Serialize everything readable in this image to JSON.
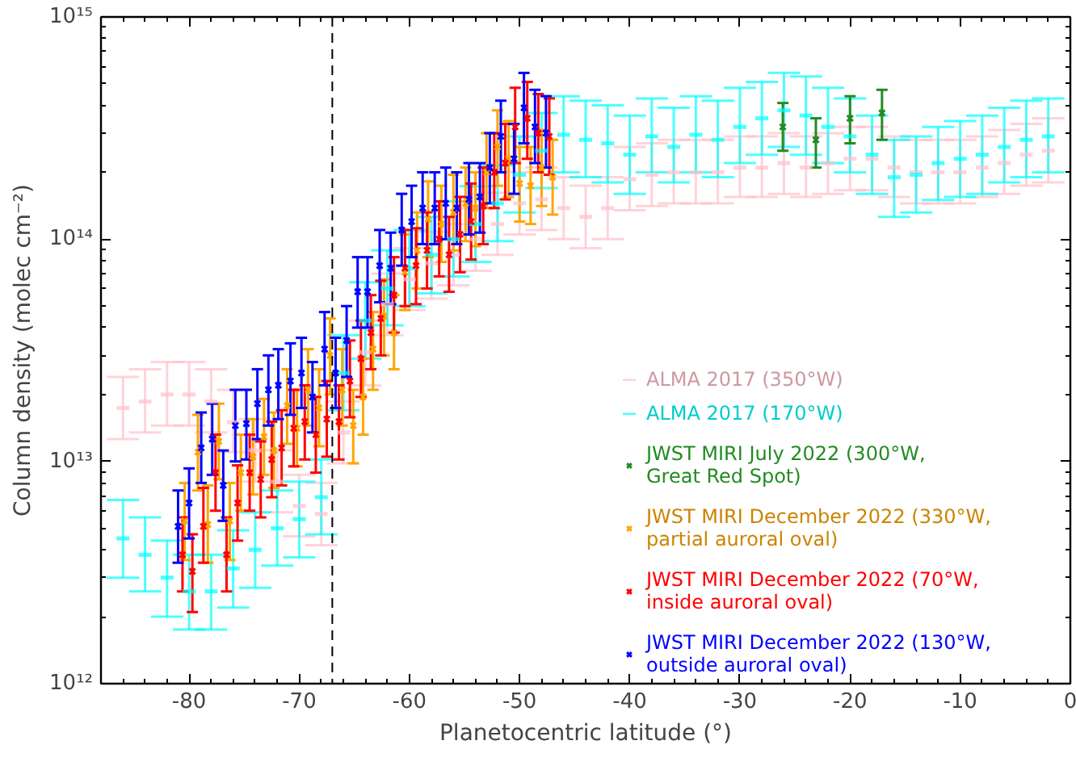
{
  "chart_data": {
    "type": "scatter",
    "xlabel": "Planetocentric latitude (°)",
    "ylabel": "Column density (molec cm⁻²)",
    "log": "y",
    "grid": false,
    "legend": "bottom right",
    "xlim": [
      -88,
      0
    ],
    "xticks": [
      -80,
      -70,
      -60,
      -50,
      -40,
      -30,
      -20,
      -10,
      0
    ],
    "ylim": [
      1000000000000.0,
      1000000000000000.0
    ],
    "yticks": [
      {
        "value": 1000000000000.0,
        "label": "10¹²"
      },
      {
        "value": 10000000000000.0,
        "label": "10¹³"
      },
      {
        "value": 100000000000000.0,
        "label": "10¹⁴"
      },
      {
        "value": 1000000000000000.0,
        "label": "10¹⁵"
      }
    ],
    "ref_lines": [
      {
        "axis": "x",
        "value": -67,
        "label": null,
        "color": "#000000",
        "line_style": "dashed"
      }
    ],
    "series": [
      {
        "name": "ALMA 2017 (350°W)",
        "color": "#ffc0cb",
        "x": [
          -86,
          -84,
          -82,
          -80,
          -78,
          -76,
          -74,
          -72,
          -70,
          -68,
          -66,
          -64,
          -62,
          -60,
          -58,
          -56,
          -54,
          -52,
          -50,
          -48,
          -46,
          -44,
          -42,
          -40,
          -38,
          -36,
          -34,
          -32,
          -30,
          -28,
          -26,
          -24,
          -22,
          -20,
          -18,
          -16,
          -14,
          -12,
          -10,
          -8,
          -6,
          -4,
          -2
        ],
        "values": [
          17400000000000.0,
          18600000000000.0,
          20000000000000.0,
          20000000000000.0,
          18600000000000.0,
          15000000000000.0,
          11200000000000.0,
          8100000000000.0,
          6300000000000.0,
          5800000000000.0,
          13500000000000.0,
          31000000000000.0,
          51000000000000.0,
          66000000000000.0,
          78000000000000.0,
          85000000000000.0,
          100000000000000.0,
          117000000000000.0,
          145000000000000.0,
          151000000000000.0,
          138000000000000.0,
          126000000000000.0,
          138000000000000.0,
          186000000000000.0,
          195000000000000.0,
          200000000000000.0,
          200000000000000.0,
          200000000000000.0,
          210000000000000.0,
          210000000000000.0,
          220000000000000.0,
          210000000000000.0,
          220000000000000.0,
          230000000000000.0,
          230000000000000.0,
          210000000000000.0,
          200000000000000.0,
          200000000000000.0,
          200000000000000.0,
          210000000000000.0,
          220000000000000.0,
          240000000000000.0,
          250000000000000.0
        ],
        "errors": [
          [
            12600000000000.0,
            24000000000000.0
          ],
          [
            13500000000000.0,
            26000000000000.0
          ],
          [
            14500000000000.0,
            28000000000000.0
          ],
          [
            14500000000000.0,
            28000000000000.0
          ],
          [
            13500000000000.0,
            26000000000000.0
          ],
          [
            11000000000000.0,
            21000000000000.0
          ],
          [
            8100000000000.0,
            15500000000000.0
          ],
          [
            5900000000000.0,
            11200000000000.0
          ],
          [
            4600000000000.0,
            8700000000000.0
          ],
          [
            4200000000000.0,
            8000000000000.0
          ],
          [
            9800000000000.0,
            18600000000000.0
          ],
          [
            22000000000000.0,
            43000000000000.0
          ],
          [
            37000000000000.0,
            70000000000000.0
          ],
          [
            48000000000000.0,
            91000000000000.0
          ],
          [
            54000000000000.0,
            108000000000000.0
          ],
          [
            62000000000000.0,
            117000000000000.0
          ],
          [
            72000000000000.0,
            138000000000000.0
          ],
          [
            85000000000000.0,
            162000000000000.0
          ],
          [
            105000000000000.0,
            200000000000000.0
          ],
          [
            110000000000000.0,
            210000000000000.0
          ],
          [
            100000000000000.0,
            190000000000000.0
          ],
          [
            91000000000000.0,
            174000000000000.0
          ],
          [
            100000000000000.0,
            190000000000000.0
          ],
          [
            135000000000000.0,
            260000000000000.0
          ],
          [
            141000000000000.0,
            270000000000000.0
          ],
          [
            145000000000000.0,
            280000000000000.0
          ],
          [
            145000000000000.0,
            280000000000000.0
          ],
          [
            145000000000000.0,
            280000000000000.0
          ],
          [
            155000000000000.0,
            290000000000000.0
          ],
          [
            155000000000000.0,
            290000000000000.0
          ],
          [
            160000000000000.0,
            300000000000000.0
          ],
          [
            155000000000000.0,
            290000000000000.0
          ],
          [
            160000000000000.0,
            300000000000000.0
          ],
          [
            166000000000000.0,
            320000000000000.0
          ],
          [
            166000000000000.0,
            320000000000000.0
          ],
          [
            155000000000000.0,
            290000000000000.0
          ],
          [
            145000000000000.0,
            280000000000000.0
          ],
          [
            145000000000000.0,
            280000000000000.0
          ],
          [
            145000000000000.0,
            280000000000000.0
          ],
          [
            155000000000000.0,
            290000000000000.0
          ],
          [
            160000000000000.0,
            310000000000000.0
          ],
          [
            174000000000000.0,
            330000000000000.0
          ],
          [
            180000000000000.0,
            350000000000000.0
          ]
        ]
      },
      {
        "name": "ALMA 2017 (170°W)",
        "color": "#00ffff",
        "x": [
          -86,
          -84,
          -82,
          -80,
          -78,
          -76,
          -74,
          -72,
          -70,
          -68,
          -66,
          -64,
          -62,
          -60,
          -58,
          -56,
          -54,
          -52,
          -50,
          -48,
          -46,
          -44,
          -42,
          -40,
          -38,
          -36,
          -34,
          -32,
          -30,
          -28,
          -26,
          -24,
          -22,
          -20,
          -18,
          -16,
          -14,
          -12,
          -10,
          -8,
          -6,
          -4,
          -2
        ],
        "values": [
          4500000000000.0,
          3800000000000.0,
          3000000000000.0,
          2600000000000.0,
          2600000000000.0,
          3300000000000.0,
          4000000000000.0,
          5000000000000.0,
          5500000000000.0,
          6900000000000.0,
          25000000000000.0,
          43000000000000.0,
          60000000000000.0,
          74000000000000.0,
          85000000000000.0,
          100000000000000.0,
          117000000000000.0,
          145000000000000.0,
          195000000000000.0,
          250000000000000.0,
          295000000000000.0,
          280000000000000.0,
          270000000000000.0,
          240000000000000.0,
          290000000000000.0,
          260000000000000.0,
          295000000000000.0,
          280000000000000.0,
          320000000000000.0,
          350000000000000.0,
          380000000000000.0,
          360000000000000.0,
          320000000000000.0,
          290000000000000.0,
          240000000000000.0,
          190000000000000.0,
          195000000000000.0,
          220000000000000.0,
          230000000000000.0,
          240000000000000.0,
          260000000000000.0,
          280000000000000.0,
          290000000000000.0
        ],
        "errors": [
          [
            3000000000000.0,
            6700000000000.0
          ],
          [
            2600000000000.0,
            5600000000000.0
          ],
          [
            2000000000000.0,
            4400000000000.0
          ],
          [
            1750000000000.0,
            3800000000000.0
          ],
          [
            1750000000000.0,
            3800000000000.0
          ],
          [
            2200000000000.0,
            4900000000000.0
          ],
          [
            2700000000000.0,
            5900000000000.0
          ],
          [
            3400000000000.0,
            7400000000000.0
          ],
          [
            3700000000000.0,
            8100000000000.0
          ],
          [
            4700000000000.0,
            10200000000000.0
          ],
          [
            17000000000000.0,
            37000000000000.0
          ],
          [
            29000000000000.0,
            64000000000000.0
          ],
          [
            41000000000000.0,
            89000000000000.0
          ],
          [
            50000000000000.0,
            110000000000000.0
          ],
          [
            57000000000000.0,
            126000000000000.0
          ],
          [
            68000000000000.0,
            148000000000000.0
          ],
          [
            79000000000000.0,
            173000000000000.0
          ],
          [
            98000000000000.0,
            215000000000000.0
          ],
          [
            132000000000000.0,
            290000000000000.0
          ],
          [
            170000000000000.0,
            370000000000000.0
          ],
          [
            200000000000000.0,
            440000000000000.0
          ],
          [
            190000000000000.0,
            420000000000000.0
          ],
          [
            180000000000000.0,
            400000000000000.0
          ],
          [
            160000000000000.0,
            360000000000000.0
          ],
          [
            200000000000000.0,
            430000000000000.0
          ],
          [
            180000000000000.0,
            390000000000000.0
          ],
          [
            200000000000000.0,
            440000000000000.0
          ],
          [
            190000000000000.0,
            420000000000000.0
          ],
          [
            220000000000000.0,
            480000000000000.0
          ],
          [
            240000000000000.0,
            510000000000000.0
          ],
          [
            260000000000000.0,
            560000000000000.0
          ],
          [
            240000000000000.0,
            540000000000000.0
          ],
          [
            220000000000000.0,
            480000000000000.0
          ],
          [
            200000000000000.0,
            430000000000000.0
          ],
          [
            160000000000000.0,
            360000000000000.0
          ],
          [
            126000000000000.0,
            280000000000000.0
          ],
          [
            132000000000000.0,
            290000000000000.0
          ],
          [
            150000000000000.0,
            320000000000000.0
          ],
          [
            155000000000000.0,
            340000000000000.0
          ],
          [
            160000000000000.0,
            360000000000000.0
          ],
          [
            180000000000000.0,
            390000000000000.0
          ],
          [
            190000000000000.0,
            420000000000000.0
          ],
          [
            200000000000000.0,
            430000000000000.0
          ]
        ]
      },
      {
        "name": "JWST MIRI July 2022 (300°W, Great Red Spot)",
        "color": "#228b22",
        "marker": "cross",
        "x": [
          -26.1,
          -23.1,
          -20.0,
          -17.1
        ],
        "values": [
          320000000000000.0,
          280000000000000.0,
          350000000000000.0,
          370000000000000.0
        ],
        "errors": [
          [
            250000000000000.0,
            410000000000000.0
          ],
          [
            210000000000000.0,
            350000000000000.0
          ],
          [
            270000000000000.0,
            440000000000000.0
          ],
          [
            280000000000000.0,
            470000000000000.0
          ]
        ]
      },
      {
        "name": "JWST MIRI December 2022 (330°W, partial auroral oval)",
        "color": "#ffa500",
        "marker": "cross",
        "x": [
          -80.4,
          -79.2,
          -78.3,
          -77.3,
          -76.3,
          -75.3,
          -74.2,
          -73.2,
          -72.3,
          -71.1,
          -70.2,
          -69.2,
          -68.2,
          -67.2,
          -66.1,
          -65.1,
          -64.2,
          -63.3,
          -62.3,
          -61.4,
          -60.4,
          -59.3,
          -58.3,
          -57.1,
          -56.0,
          -54.9,
          -54.0,
          -53.0,
          -52.0,
          -51.0,
          -50.0,
          -49.0,
          -48.0,
          -47.0
        ],
        "values": [
          5400000000000.0,
          11000000000000.0,
          5200000000000.0,
          12300000000000.0,
          5400000000000.0,
          8900000000000.0,
          10500000000000.0,
          12900000000000.0,
          11200000000000.0,
          17800000000000.0,
          14100000000000.0,
          21000000000000.0,
          17400000000000.0,
          30000000000000.0,
          21000000000000.0,
          14500000000000.0,
          19500000000000.0,
          32000000000000.0,
          45000000000000.0,
          38000000000000.0,
          71000000000000.0,
          89000000000000.0,
          123000000000000.0,
          117000000000000.0,
          132000000000000.0,
          145000000000000.0,
          138000000000000.0,
          200000000000000.0,
          260000000000000.0,
          230000000000000.0,
          178000000000000.0,
          174000000000000.0,
          210000000000000.0,
          190000000000000.0
        ],
        "errors": [
          [
            3600000000000.0,
            8000000000000.0
          ],
          [
            7400000000000.0,
            16200000000000.0
          ],
          [
            3500000000000.0,
            7800000000000.0
          ],
          [
            8300000000000.0,
            18200000000000.0
          ],
          [
            3600000000000.0,
            8000000000000.0
          ],
          [
            6000000000000.0,
            13200000000000.0
          ],
          [
            7100000000000.0,
            15500000000000.0
          ],
          [
            8700000000000.0,
            19100000000000.0
          ],
          [
            7600000000000.0,
            16600000000000.0
          ],
          [
            12000000000000.0,
            26000000000000.0
          ],
          [
            9500000000000.0,
            21000000000000.0
          ],
          [
            14500000000000.0,
            32000000000000.0
          ],
          [
            11700000000000.0,
            26000000000000.0
          ],
          [
            20000000000000.0,
            44000000000000.0
          ],
          [
            14500000000000.0,
            32000000000000.0
          ],
          [
            9800000000000.0,
            21000000000000.0
          ],
          [
            13200000000000.0,
            29000000000000.0
          ],
          [
            21000000000000.0,
            47000000000000.0
          ],
          [
            30000000000000.0,
            66000000000000.0
          ],
          [
            26000000000000.0,
            56000000000000.0
          ],
          [
            48000000000000.0,
            105000000000000.0
          ],
          [
            60000000000000.0,
            132000000000000.0
          ],
          [
            83000000000000.0,
            182000000000000.0
          ],
          [
            79000000000000.0,
            174000000000000.0
          ],
          [
            89000000000000.0,
            195000000000000.0
          ],
          [
            98000000000000.0,
            210000000000000.0
          ],
          [
            93000000000000.0,
            200000000000000.0
          ],
          [
            138000000000000.0,
            300000000000000.0
          ],
          [
            174000000000000.0,
            380000000000000.0
          ],
          [
            155000000000000.0,
            340000000000000.0
          ],
          [
            120000000000000.0,
            260000000000000.0
          ],
          [
            117000000000000.0,
            260000000000000.0
          ],
          [
            141000000000000.0,
            310000000000000.0
          ],
          [
            129000000000000.0,
            280000000000000.0
          ]
        ]
      },
      {
        "name": "JWST MIRI December 2022 (70°W, inside auroral oval)",
        "color": "#ff0000",
        "marker": "cross",
        "x": [
          -80.6,
          -79.7,
          -78.7,
          -77.6,
          -76.6,
          -75.6,
          -74.5,
          -73.5,
          -72.5,
          -71.6,
          -70.5,
          -69.5,
          -68.5,
          -67.5,
          -66.4,
          -65.4,
          -64.4,
          -63.5,
          -62.6,
          -61.4,
          -60.4,
          -59.4,
          -58.4,
          -57.3,
          -56.4,
          -55.4,
          -54.4,
          -53.3,
          -52.3,
          -51.3,
          -50.4,
          -49.3,
          -48.3,
          -47.3
        ],
        "values": [
          3800000000000.0,
          3200000000000.0,
          5100000000000.0,
          8900000000000.0,
          3800000000000.0,
          6500000000000.0,
          8900000000000.0,
          8300000000000.0,
          10200000000000.0,
          11500000000000.0,
          14100000000000.0,
          15100000000000.0,
          13200000000000.0,
          15500000000000.0,
          15100000000000.0,
          23000000000000.0,
          29000000000000.0,
          38000000000000.0,
          44000000000000.0,
          56000000000000.0,
          74000000000000.0,
          76000000000000.0,
          89000000000000.0,
          100000000000000.0,
          85000000000000.0,
          105000000000000.0,
          120000000000000.0,
          141000000000000.0,
          200000000000000.0,
          220000000000000.0,
          320000000000000.0,
          350000000000000.0,
          300000000000000.0,
          290000000000000.0
        ],
        "errors": [
          [
            2600000000000.0,
            5600000000000.0
          ],
          [
            2100000000000.0,
            4700000000000.0
          ],
          [
            3500000000000.0,
            7600000000000.0
          ],
          [
            6000000000000.0,
            13200000000000.0
          ],
          [
            2600000000000.0,
            5600000000000.0
          ],
          [
            4400000000000.0,
            9600000000000.0
          ],
          [
            6000000000000.0,
            13200000000000.0
          ],
          [
            5600000000000.0,
            12300000000000.0
          ],
          [
            6900000000000.0,
            15100000000000.0
          ],
          [
            7800000000000.0,
            17000000000000.0
          ],
          [
            9500000000000.0,
            21000000000000.0
          ],
          [
            10200000000000.0,
            22000000000000.0
          ],
          [
            8900000000000.0,
            19500000000000.0
          ],
          [
            10500000000000.0,
            23000000000000.0
          ],
          [
            10200000000000.0,
            22000000000000.0
          ],
          [
            15800000000000.0,
            35000000000000.0
          ],
          [
            19500000000000.0,
            43000000000000.0
          ],
          [
            26000000000000.0,
            56000000000000.0
          ],
          [
            30000000000000.0,
            65000000000000.0
          ],
          [
            38000000000000.0,
            83000000000000.0
          ],
          [
            50000000000000.0,
            110000000000000.0
          ],
          [
            51000000000000.0,
            112000000000000.0
          ],
          [
            60000000000000.0,
            132000000000000.0
          ],
          [
            68000000000000.0,
            148000000000000.0
          ],
          [
            58000000000000.0,
            126000000000000.0
          ],
          [
            71000000000000.0,
            155000000000000.0
          ],
          [
            81000000000000.0,
            178000000000000.0
          ],
          [
            95000000000000.0,
            210000000000000.0
          ],
          [
            138000000000000.0,
            300000000000000.0
          ],
          [
            151000000000000.0,
            330000000000000.0
          ],
          [
            220000000000000.0,
            480000000000000.0
          ],
          [
            230000000000000.0,
            510000000000000.0
          ],
          [
            200000000000000.0,
            450000000000000.0
          ],
          [
            195000000000000.0,
            430000000000000.0
          ]
        ]
      },
      {
        "name": "JWST MIRI December 2022 (130°W, outside auroral oval)",
        "color": "#0000ff",
        "marker": "cross",
        "x": [
          -81.0,
          -80.0,
          -78.9,
          -77.9,
          -76.9,
          -75.8,
          -74.8,
          -73.8,
          -72.8,
          -71.9,
          -70.8,
          -69.8,
          -68.8,
          -67.7,
          -66.7,
          -65.7,
          -64.7,
          -63.8,
          -62.7,
          -61.7,
          -60.7,
          -59.8,
          -58.8,
          -57.7,
          -56.7,
          -55.7,
          -54.6,
          -53.6,
          -52.7,
          -51.7,
          -50.5,
          -49.6,
          -48.6,
          -47.6
        ],
        "values": [
          5100000000000.0,
          6500000000000.0,
          11500000000000.0,
          12600000000000.0,
          7800000000000.0,
          14500000000000.0,
          14800000000000.0,
          18200000000000.0,
          21000000000000.0,
          22000000000000.0,
          23000000000000.0,
          25000000000000.0,
          19500000000000.0,
          32000000000000.0,
          25000000000000.0,
          35000000000000.0,
          58000000000000.0,
          58000000000000.0,
          76000000000000.0,
          74000000000000.0,
          110000000000000.0,
          120000000000000.0,
          138000000000000.0,
          138000000000000.0,
          145000000000000.0,
          138000000000000.0,
          151000000000000.0,
          155000000000000.0,
          210000000000000.0,
          290000000000000.0,
          230000000000000.0,
          390000000000000.0,
          320000000000000.0,
          300000000000000.0
        ],
        "errors": [
          [
            3500000000000.0,
            7400000000000.0
          ],
          [
            4500000000000.0,
            9300000000000.0
          ],
          [
            8000000000000.0,
            16600000000000.0
          ],
          [
            8700000000000.0,
            18200000000000.0
          ],
          [
            5400000000000.0,
            11200000000000.0
          ],
          [
            10000000000000.0,
            21000000000000.0
          ],
          [
            10200000000000.0,
            21000000000000.0
          ],
          [
            12600000000000.0,
            26000000000000.0
          ],
          [
            14500000000000.0,
            30000000000000.0
          ],
          [
            15500000000000.0,
            32000000000000.0
          ],
          [
            16200000000000.0,
            34000000000000.0
          ],
          [
            17400000000000.0,
            36000000000000.0
          ],
          [
            13500000000000.0,
            28000000000000.0
          ],
          [
            22000000000000.0,
            47000000000000.0
          ],
          [
            17400000000000.0,
            36000000000000.0
          ],
          [
            24000000000000.0,
            50000000000000.0
          ],
          [
            40000000000000.0,
            83000000000000.0
          ],
          [
            40000000000000.0,
            83000000000000.0
          ],
          [
            52000000000000.0,
            110000000000000.0
          ],
          [
            51000000000000.0,
            107000000000000.0
          ],
          [
            76000000000000.0,
            160000000000000.0
          ],
          [
            83000000000000.0,
            174000000000000.0
          ],
          [
            95000000000000.0,
            200000000000000.0
          ],
          [
            95000000000000.0,
            200000000000000.0
          ],
          [
            100000000000000.0,
            210000000000000.0
          ],
          [
            95000000000000.0,
            200000000000000.0
          ],
          [
            105000000000000.0,
            220000000000000.0
          ],
          [
            107000000000000.0,
            220000000000000.0
          ],
          [
            145000000000000.0,
            300000000000000.0
          ],
          [
            200000000000000.0,
            420000000000000.0
          ],
          [
            160000000000000.0,
            330000000000000.0
          ],
          [
            270000000000000.0,
            560000000000000.0
          ],
          [
            220000000000000.0,
            470000000000000.0
          ],
          [
            210000000000000.0,
            440000000000000.0
          ]
        ]
      }
    ]
  }
}
